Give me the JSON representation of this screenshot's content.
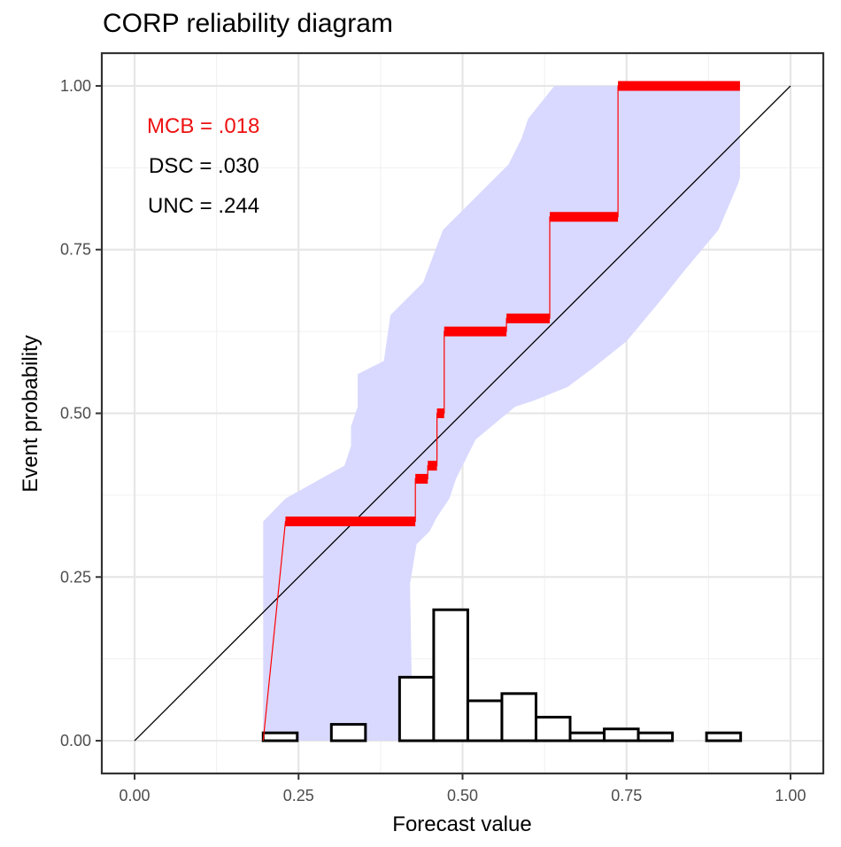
{
  "chart_data": {
    "type": "line",
    "title": "CORP reliability diagram",
    "xlabel": "Forecast value",
    "ylabel": "Event probability",
    "xlim": [
      -0.05,
      1.05
    ],
    "ylim": [
      -0.05,
      1.05
    ],
    "grid": true,
    "x_ticks": [
      0.0,
      0.25,
      0.5,
      0.75,
      1.0
    ],
    "x_tick_labels": [
      "0.00",
      "0.25",
      "0.50",
      "0.75",
      "1.00"
    ],
    "y_ticks": [
      0.0,
      0.25,
      0.5,
      0.75,
      1.0
    ],
    "y_tick_labels": [
      "0.00",
      "0.25",
      "0.50",
      "0.75",
      "1.00"
    ],
    "annotations": [
      {
        "label": "MCB = .018",
        "color": "#ee1111"
      },
      {
        "label": "DSC = .030",
        "color": "#000000"
      },
      {
        "label": "UNC = .244",
        "color": "#000000"
      }
    ],
    "diagonal": {
      "x": [
        0,
        1
      ],
      "y": [
        0,
        1
      ],
      "color": "#000000"
    },
    "reliability_curve": {
      "color": "#ff0000",
      "start": [
        0.196,
        0.0
      ],
      "steps": [
        {
          "x0": 0.23,
          "x1": 0.428,
          "y": 0.335
        },
        {
          "x0": 0.428,
          "x1": 0.447,
          "y": 0.4
        },
        {
          "x0": 0.447,
          "x1": 0.461,
          "y": 0.42
        },
        {
          "x0": 0.461,
          "x1": 0.472,
          "y": 0.5
        },
        {
          "x0": 0.472,
          "x1": 0.567,
          "y": 0.625
        },
        {
          "x0": 0.567,
          "x1": 0.633,
          "y": 0.645
        },
        {
          "x0": 0.633,
          "x1": 0.737,
          "y": 0.8
        },
        {
          "x0": 0.737,
          "x1": 0.923,
          "y": 1.0
        }
      ]
    },
    "consistency_band": {
      "color": "#d9d9ff",
      "upper": [
        [
          0.196,
          0.335
        ],
        [
          0.23,
          0.37
        ],
        [
          0.32,
          0.42
        ],
        [
          0.33,
          0.45
        ],
        [
          0.33,
          0.48
        ],
        [
          0.34,
          0.51
        ],
        [
          0.34,
          0.56
        ],
        [
          0.38,
          0.58
        ],
        [
          0.39,
          0.65
        ],
        [
          0.44,
          0.7
        ],
        [
          0.47,
          0.78
        ],
        [
          0.57,
          0.88
        ],
        [
          0.59,
          0.92
        ],
        [
          0.6,
          0.95
        ],
        [
          0.64,
          1.0
        ],
        [
          0.923,
          1.0
        ]
      ],
      "lower": [
        [
          0.923,
          0.86
        ],
        [
          0.92,
          0.85
        ],
        [
          0.89,
          0.78
        ],
        [
          0.84,
          0.72
        ],
        [
          0.8,
          0.67
        ],
        [
          0.75,
          0.61
        ],
        [
          0.7,
          0.57
        ],
        [
          0.66,
          0.54
        ],
        [
          0.61,
          0.52
        ],
        [
          0.58,
          0.51
        ],
        [
          0.52,
          0.46
        ],
        [
          0.5,
          0.42
        ],
        [
          0.49,
          0.4
        ],
        [
          0.48,
          0.37
        ],
        [
          0.46,
          0.34
        ],
        [
          0.45,
          0.32
        ],
        [
          0.43,
          0.3
        ],
        [
          0.42,
          0.24
        ],
        [
          0.424,
          0.0
        ],
        [
          0.196,
          0.0
        ]
      ]
    },
    "histogram": {
      "bin_edges": [
        0.196,
        0.248,
        0.3,
        0.352,
        0.404,
        0.456,
        0.508,
        0.56,
        0.612,
        0.664,
        0.716,
        0.768,
        0.82,
        0.872,
        0.924
      ],
      "heights": [
        0.012,
        0.0,
        0.025,
        0.0,
        0.097,
        0.2,
        0.061,
        0.072,
        0.036,
        0.012,
        0.018,
        0.012,
        0.0,
        0.012
      ]
    }
  }
}
